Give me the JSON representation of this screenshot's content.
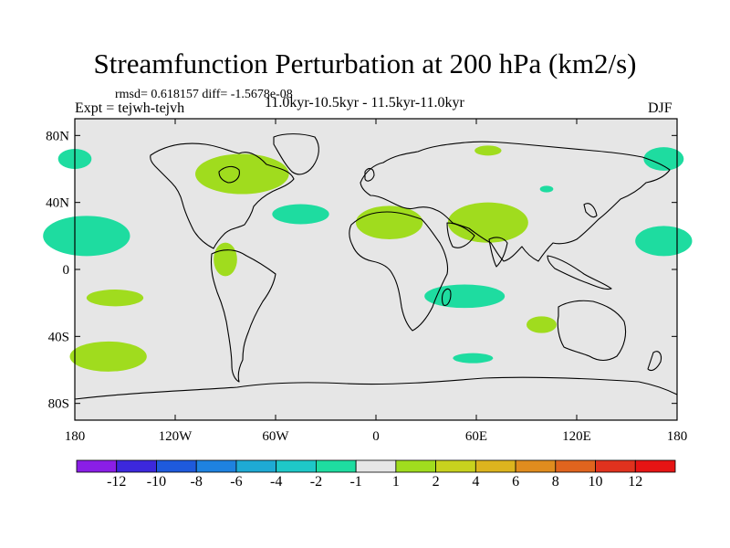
{
  "title": "Streamfunction Perturbation at 200 hPa (km2/s)",
  "stats": "rmsd= 0.618157 diff= -1.5678e-08",
  "experiment": "Expt = tejwh-tejvh",
  "period": "11.0kyr-10.5kyr - 11.5kyr-11.0kyr",
  "season": "DJF",
  "y_ticks": [
    {
      "label": "80N",
      "lat": 80
    },
    {
      "label": "40N",
      "lat": 40
    },
    {
      "label": "0",
      "lat": 0
    },
    {
      "label": "40S",
      "lat": -40
    },
    {
      "label": "80S",
      "lat": -80
    }
  ],
  "x_ticks": [
    {
      "label": "180",
      "lon": -180
    },
    {
      "label": "120W",
      "lon": -120
    },
    {
      "label": "60W",
      "lon": -60
    },
    {
      "label": "0",
      "lon": 0
    },
    {
      "label": "60E",
      "lon": 60
    },
    {
      "label": "120E",
      "lon": 120
    },
    {
      "label": "180",
      "lon": 180
    }
  ],
  "colorbar": {
    "colors": [
      "#8a1ee6",
      "#3c28dc",
      "#1e5adc",
      "#1e82e0",
      "#1eaad4",
      "#1ec8c8",
      "#1edca0",
      "#e6e6e6",
      "#a0dc1e",
      "#c8d21e",
      "#dcb41e",
      "#e08c1e",
      "#e0641e",
      "#e0321e",
      "#e61414"
    ],
    "labels": [
      "-12",
      "-10",
      "-8",
      "-6",
      "-4",
      "-2",
      "-1",
      "1",
      "2",
      "4",
      "6",
      "8",
      "10",
      "12"
    ]
  },
  "chart_data": {
    "type": "map-contour",
    "projection": "cylindrical-equidistant",
    "lon_range": [
      -180,
      180
    ],
    "lat_range": [
      -90,
      90
    ],
    "background_level": "between -1 and 1",
    "anomalies": [
      {
        "lon": -180,
        "lat": 66,
        "rx": 10,
        "ry": 6,
        "sign": "negative",
        "level": "-2 to -1"
      },
      {
        "lon": -173,
        "lat": 20,
        "rx": 26,
        "ry": 12,
        "sign": "negative",
        "level": "-2 to -1"
      },
      {
        "lon": -156,
        "lat": -17,
        "rx": 17,
        "ry": 5,
        "sign": "positive",
        "level": "1 to 2"
      },
      {
        "lon": -160,
        "lat": -52,
        "rx": 23,
        "ry": 9,
        "sign": "positive",
        "level": "1 to 2"
      },
      {
        "lon": -80,
        "lat": 57,
        "rx": 28,
        "ry": 12,
        "sign": "positive",
        "level": "1 to 2"
      },
      {
        "lon": -90,
        "lat": 6,
        "rx": 7,
        "ry": 10,
        "sign": "positive",
        "level": "1 to 2"
      },
      {
        "lon": -45,
        "lat": 33,
        "rx": 17,
        "ry": 6,
        "sign": "negative",
        "level": "-2 to -1"
      },
      {
        "lon": 8,
        "lat": 28,
        "rx": 20,
        "ry": 10,
        "sign": "positive",
        "level": "1 to 2"
      },
      {
        "lon": 67,
        "lat": 28,
        "rx": 24,
        "ry": 12,
        "sign": "positive",
        "level": "1 to 2"
      },
      {
        "lon": 67,
        "lat": 71,
        "rx": 8,
        "ry": 3,
        "sign": "positive",
        "level": "1 to 2"
      },
      {
        "lon": 102,
        "lat": 48,
        "rx": 4,
        "ry": 2,
        "sign": "negative",
        "level": "-2 to -1"
      },
      {
        "lon": 53,
        "lat": -16,
        "rx": 24,
        "ry": 7,
        "sign": "negative",
        "level": "-2 to -1"
      },
      {
        "lon": 58,
        "lat": -53,
        "rx": 12,
        "ry": 3,
        "sign": "negative",
        "level": "-2 to -1"
      },
      {
        "lon": 99,
        "lat": -33,
        "rx": 9,
        "ry": 5,
        "sign": "positive",
        "level": "1 to 2"
      },
      {
        "lon": 172,
        "lat": 66,
        "rx": 12,
        "ry": 7,
        "sign": "negative",
        "level": "-2 to -1"
      },
      {
        "lon": 172,
        "lat": 17,
        "rx": 17,
        "ry": 9,
        "sign": "negative",
        "level": "-2 to -1"
      }
    ]
  }
}
